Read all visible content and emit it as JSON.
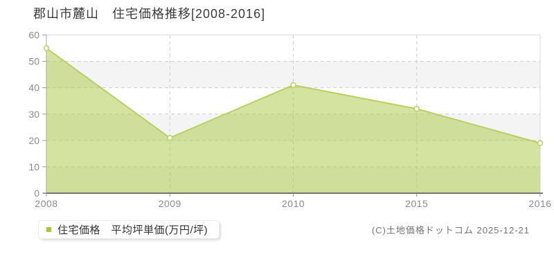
{
  "title": "郡山市麓山　住宅価格推移[2008-2016]",
  "legend": {
    "marker_color": "#a7c739",
    "label": "住宅価格　平均坪単価(万円/坪)"
  },
  "copyright": "(C)土地価格ドットコム 2025-12-21",
  "chart_data": {
    "type": "area",
    "title": "郡山市麓山 住宅価格推移[2008-2016]",
    "categories": [
      "2008",
      "2009",
      "2010",
      "2015",
      "2016"
    ],
    "series": [
      {
        "name": "住宅価格 平均坪単価(万円/坪)",
        "values": [
          55,
          21,
          41,
          32,
          19
        ]
      }
    ],
    "xlabel": "",
    "ylabel": "平均坪単価(万円/坪)",
    "ylim": [
      0,
      60
    ],
    "ytick_interval": 10,
    "grid": true,
    "legend_position": "bottom-left",
    "colors": {
      "line": "#b7d15c",
      "fill_rgba": "rgba(175,202,74,0.52)",
      "marker_fill": "#ffffff",
      "band_alt": "#f4f4f4",
      "band_main": "#ffffff",
      "gridline": "#cccccc",
      "border": "#d9d9d9",
      "y_axis_line": "#aaaaaa",
      "x_axis_line": "#4d4d4d",
      "tick": "#999999",
      "tick_label": "#8a8a8a"
    }
  }
}
